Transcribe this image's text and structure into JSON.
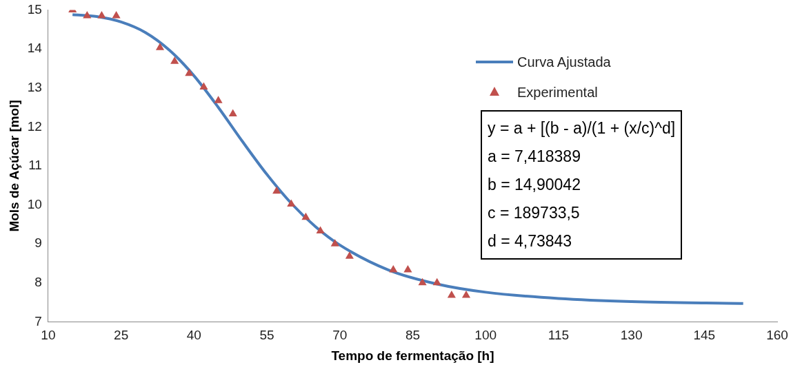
{
  "chart_data": {
    "type": "line",
    "xlabel": "Tempo de fermentação [h]",
    "ylabel": "Mols de Açúcar [mol]",
    "xlim": [
      10,
      160
    ],
    "xticks": [
      10,
      25,
      40,
      55,
      70,
      85,
      100,
      115,
      130,
      145,
      160
    ],
    "ylim": [
      7,
      15
    ],
    "yticks": [
      7,
      8,
      9,
      10,
      11,
      12,
      13,
      14,
      15
    ],
    "grid": false,
    "legend": "top right",
    "series": [
      {
        "name": "Curva Ajustada",
        "color": "#4a7ebb",
        "marker": "none",
        "line_style": "solid",
        "x": [
          15,
          20,
          25,
          30,
          35,
          40,
          45,
          50,
          55,
          60,
          65,
          70,
          80,
          90,
          100,
          115,
          130,
          153
        ],
        "values": [
          14.88,
          14.83,
          14.69,
          14.42,
          13.96,
          13.31,
          12.5,
          11.62,
          10.78,
          10.04,
          9.44,
          8.97,
          8.33,
          7.97,
          7.76,
          7.6,
          7.52,
          7.47
        ]
      },
      {
        "name": "Experimental",
        "type": "scatter",
        "color": "#c0504d",
        "marker": "triangle",
        "x": [
          15,
          18,
          21,
          24,
          33,
          36,
          39,
          42,
          45,
          48,
          57,
          60,
          63,
          66,
          69,
          72,
          81,
          84,
          87,
          90,
          93,
          96
        ],
        "values": [
          15,
          14.85,
          14.85,
          14.85,
          14.03,
          13.68,
          13.37,
          13.02,
          12.67,
          12.33,
          10.35,
          10.02,
          9.68,
          9.33,
          9,
          8.68,
          8.33,
          8.33,
          8,
          8,
          7.68,
          7.68
        ]
      }
    ],
    "annotations": [
      "y = a + [(b - a)/(1 + (x/c)^d]",
      "a = 7,418389",
      "b = 14,90042",
      "c = 189733,5",
      "d = 4,73843"
    ]
  }
}
